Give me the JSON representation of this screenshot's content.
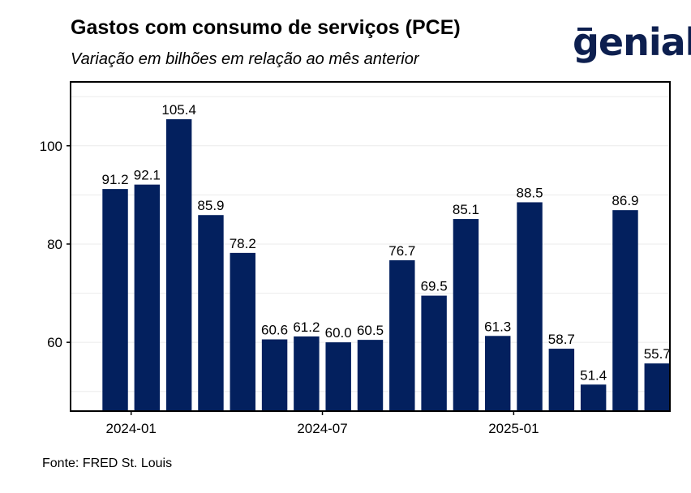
{
  "header": {
    "title": "Gastos com consumo de serviços (PCE)",
    "subtitle": "Variação em bilhões em relação ao mês anterior",
    "logo_text": "genial"
  },
  "footer": {
    "source": "Fonte: FRED St. Louis"
  },
  "colors": {
    "bar": "#03205e",
    "grid": "#ebebeb",
    "axis": "#000000",
    "logo": "#0d1f4f"
  },
  "chart_data": {
    "type": "bar",
    "title": "Gastos com consumo de serviços (PCE)",
    "subtitle": "Variação em bilhões em relação ao mês anterior",
    "xlabel": "",
    "ylabel": "",
    "grid": true,
    "ylim": [
      46,
      113
    ],
    "yticks": [
      60,
      80,
      100
    ],
    "xtick_labels": [
      "2024-01",
      "2024-07",
      "2025-01"
    ],
    "xtick_positions": [
      1,
      7,
      13
    ],
    "values": [
      91.2,
      92.1,
      105.4,
      85.9,
      78.2,
      60.6,
      61.2,
      60.0,
      60.5,
      76.7,
      69.5,
      85.1,
      61.3,
      88.5,
      58.7,
      51.4,
      86.9,
      55.7
    ],
    "labels": [
      "91.2",
      "92.1",
      "105.4",
      "85.9",
      "78.2",
      "60.6",
      "61.2",
      "60.0",
      "60.5",
      "76.7",
      "69.5",
      "85.1",
      "61.3",
      "88.5",
      "58.7",
      "51.4",
      "86.9",
      "55.7"
    ]
  }
}
